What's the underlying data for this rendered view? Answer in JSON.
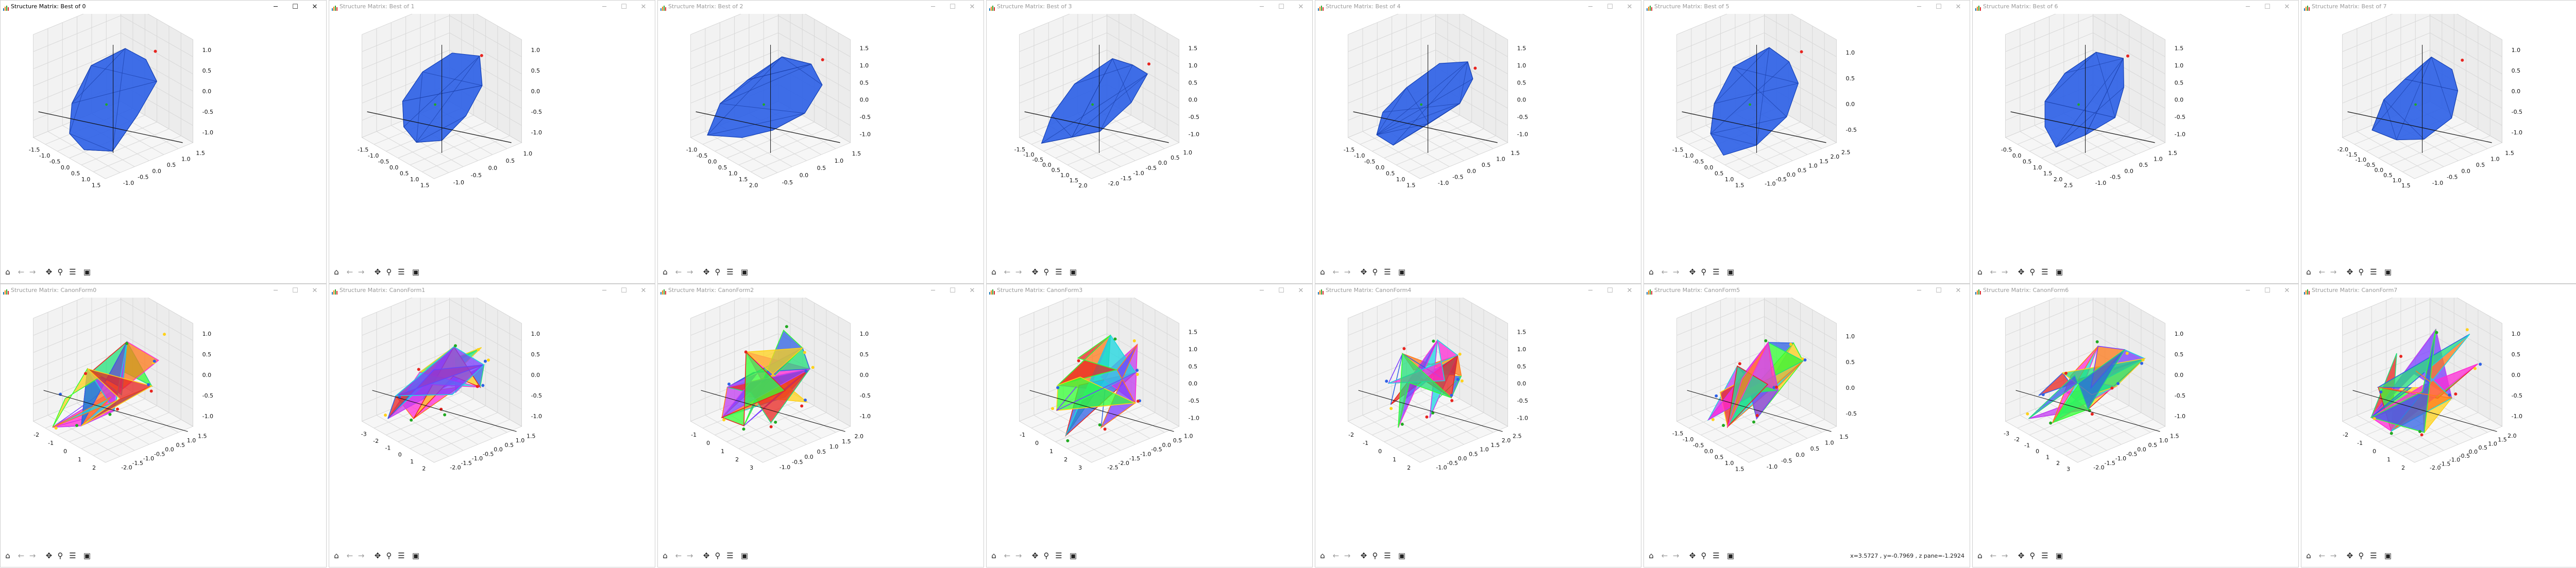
{
  "windows": [
    {
      "title": "Structure Matrix: Best of 0",
      "active": true,
      "xticks": [
        "-1.5",
        "-1.0",
        "-0.5",
        "0.0",
        "0.5",
        "1.0",
        "1.5"
      ],
      "yticks": [
        "-1.0",
        "-0.5",
        "0.0",
        "0.5",
        "1.0",
        "1.5"
      ],
      "zticks": [
        "1.0",
        "0.5",
        "0.0",
        "-0.5",
        "-1.0"
      ],
      "mode": "blue",
      "variant": 0
    },
    {
      "title": "Structure Matrix: Best of 1",
      "active": false,
      "xticks": [
        "-1.5",
        "-1.0",
        "-0.5",
        "0.0",
        "0.5",
        "1.0",
        "1.5"
      ],
      "yticks": [
        "-1.0",
        "-0.5",
        "0.0",
        "0.5",
        "1.0"
      ],
      "zticks": [
        "1.0",
        "0.5",
        "0.0",
        "-0.5",
        "-1.0"
      ],
      "mode": "blue",
      "variant": 1
    },
    {
      "title": "Structure Matrix: Best of 2",
      "active": false,
      "xticks": [
        "-1.0",
        "-0.5",
        "0.0",
        "0.5",
        "1.0",
        "1.5",
        "2.0"
      ],
      "yticks": [
        "-0.5",
        "0.0",
        "0.5",
        "1.0",
        "1.5"
      ],
      "zticks": [
        "1.5",
        "1.0",
        "0.5",
        "0.0",
        "-0.5",
        "-1.0"
      ],
      "mode": "blue",
      "variant": 2
    },
    {
      "title": "Structure Matrix: Best of 3",
      "active": false,
      "xticks": [
        "-1.5",
        "-1.0",
        "-0.5",
        "0.0",
        "0.5",
        "1.0",
        "1.5",
        "2.0"
      ],
      "yticks": [
        "-2.0",
        "-1.5",
        "-1.0",
        "-0.5",
        "0.0",
        "0.5",
        "1.0"
      ],
      "zticks": [
        "1.5",
        "1.0",
        "0.5",
        "0.0",
        "-0.5",
        "-1.0"
      ],
      "mode": "blue",
      "variant": 3
    },
    {
      "title": "Structure Matrix: Best of 4",
      "active": false,
      "xticks": [
        "-1.5",
        "-1.0",
        "-0.5",
        "0.0",
        "0.5",
        "1.0",
        "1.5"
      ],
      "yticks": [
        "-1.0",
        "-0.5",
        "0.0",
        "0.5",
        "1.0",
        "1.5"
      ],
      "zticks": [
        "1.5",
        "1.0",
        "0.5",
        "0.0",
        "-0.5",
        "-1.0"
      ],
      "mode": "blue",
      "variant": 4
    },
    {
      "title": "Structure Matrix: Best of 5",
      "active": false,
      "xticks": [
        "-1.5",
        "-1.0",
        "-0.5",
        "0.0",
        "0.5",
        "1.0",
        "1.5"
      ],
      "yticks": [
        "-1.0",
        "-0.5",
        "0.0",
        "0.5",
        "1.0",
        "1.5",
        "2.0",
        "2.5"
      ],
      "zticks": [
        "1.0",
        "0.5",
        "0.0",
        "-0.5"
      ],
      "mode": "blue",
      "variant": 5
    },
    {
      "title": "Structure Matrix: Best of 6",
      "active": false,
      "xticks": [
        "-0.5",
        "0.0",
        "0.5",
        "1.0",
        "1.5",
        "2.0",
        "2.5"
      ],
      "yticks": [
        "-1.0",
        "-0.5",
        "0.0",
        "0.5",
        "1.0",
        "1.5"
      ],
      "zticks": [
        "1.5",
        "1.0",
        "0.5",
        "0.0",
        "-0.5",
        "-1.0"
      ],
      "mode": "blue",
      "variant": 6
    },
    {
      "title": "Structure Matrix: Best of 7",
      "active": false,
      "xticks": [
        "-2.0",
        "-1.5",
        "-1.0",
        "-0.5",
        "0.0",
        "0.5",
        "1.0",
        "1.5"
      ],
      "yticks": [
        "-1.0",
        "-0.5",
        "0.0",
        "0.5",
        "1.0",
        "1.5"
      ],
      "zticks": [
        "1.0",
        "0.5",
        "0.0",
        "-0.5",
        "-1.0"
      ],
      "mode": "blue",
      "variant": 7
    },
    {
      "title": "Structure Matrix: CanonForm0",
      "active": false,
      "xticks": [
        "-2",
        "-1",
        "0",
        "1",
        "2"
      ],
      "yticks": [
        "-2.0",
        "-1.5",
        "-1.0",
        "-0.5",
        "0.0",
        "0.5",
        "1.0",
        "1.5"
      ],
      "zticks": [
        "1.0",
        "0.5",
        "0.0",
        "-0.5",
        "-1.0"
      ],
      "mode": "color",
      "variant": 0
    },
    {
      "title": "Structure Matrix: CanonForm1",
      "active": false,
      "xticks": [
        "-3",
        "-2",
        "-1",
        "0",
        "1",
        "2"
      ],
      "yticks": [
        "-2.0",
        "-1.5",
        "-1.0",
        "-0.5",
        "0.0",
        "0.5",
        "1.0",
        "1.5"
      ],
      "zticks": [
        "1.0",
        "0.5",
        "0.0",
        "-0.5",
        "-1.0"
      ],
      "mode": "color",
      "variant": 1
    },
    {
      "title": "Structure Matrix: CanonForm2",
      "active": false,
      "xticks": [
        "-1",
        "0",
        "1",
        "2",
        "3"
      ],
      "yticks": [
        "-1.0",
        "-0.5",
        "0.0",
        "0.5",
        "1.0",
        "1.5",
        "2.0"
      ],
      "zticks": [
        "1.0",
        "0.5",
        "0.0",
        "-0.5",
        "-1.0"
      ],
      "mode": "color",
      "variant": 2
    },
    {
      "title": "Structure Matrix: CanonForm3",
      "active": false,
      "xticks": [
        "-1",
        "0",
        "1",
        "2",
        "3"
      ],
      "yticks": [
        "-2.5",
        "-2.0",
        "-1.5",
        "-1.0",
        "-0.5",
        "0.0",
        "0.5",
        "1.0"
      ],
      "zticks": [
        "1.5",
        "1.0",
        "0.5",
        "0.0",
        "-0.5",
        "-1.0"
      ],
      "mode": "color",
      "variant": 3
    },
    {
      "title": "Structure Matrix: CanonForm4",
      "active": false,
      "xticks": [
        "-2",
        "-1",
        "0",
        "1",
        "2"
      ],
      "yticks": [
        "-1.0",
        "-0.5",
        "0.0",
        "0.5",
        "1.0",
        "1.5",
        "2.0",
        "2.5"
      ],
      "zticks": [
        "1.5",
        "1.0",
        "0.5",
        "0.0",
        "-0.5",
        "-1.0"
      ],
      "mode": "color",
      "variant": 4
    },
    {
      "title": "Structure Matrix: CanonForm5",
      "active": false,
      "xticks": [
        "-1.5",
        "-1.0",
        "-0.5",
        "0.0",
        "0.5",
        "1.0",
        "1.5"
      ],
      "yticks": [
        "-1.0",
        "-0.5",
        "0.0",
        "0.5",
        "1.0",
        "1.5"
      ],
      "zticks": [
        "1.0",
        "0.5",
        "0.0",
        "-0.5"
      ],
      "mode": "color",
      "variant": 5,
      "readout": "x=3.5727 , y=-0.7969 , z pane=-1.2924"
    },
    {
      "title": "Structure Matrix: CanonForm6",
      "active": false,
      "xticks": [
        "-3",
        "-2",
        "-1",
        "0",
        "1",
        "2",
        "3"
      ],
      "yticks": [
        "-2.0",
        "-1.5",
        "-1.0",
        "-0.5",
        "0.0",
        "0.5",
        "1.0",
        "1.5"
      ],
      "zticks": [
        "1.0",
        "0.5",
        "0.0",
        "-0.5",
        "-1.0"
      ],
      "mode": "color",
      "variant": 6
    },
    {
      "title": "Structure Matrix: CanonForm7",
      "active": false,
      "xticks": [
        "-2",
        "-1",
        "0",
        "1",
        "2"
      ],
      "yticks": [
        "-2.0",
        "-1.5",
        "-1.0",
        "-0.5",
        "0.0",
        "0.5",
        "1.0",
        "1.5",
        "2.0"
      ],
      "zticks": [
        "1.0",
        "0.5",
        "0.0",
        "-0.5",
        "-1.0"
      ],
      "mode": "color",
      "variant": 7
    }
  ],
  "window_controls": {
    "minimize": "─",
    "maximize": "☐",
    "close": "✕"
  },
  "toolbar_icons": [
    {
      "name": "home-icon",
      "glyph": "⌂",
      "enabled": true
    },
    {
      "name": "back-arrow-icon",
      "glyph": "←",
      "enabled": false
    },
    {
      "name": "forward-arrow-icon",
      "glyph": "→",
      "enabled": false
    },
    {
      "name": "pan-icon",
      "glyph": "✥",
      "enabled": true
    },
    {
      "name": "zoom-icon",
      "glyph": "⚲",
      "enabled": true
    },
    {
      "name": "configure-subplots-icon",
      "glyph": "☰",
      "enabled": true
    },
    {
      "name": "save-icon",
      "glyph": "▣",
      "enabled": true
    }
  ],
  "colors": {
    "blue_face": "#2f62e6",
    "blue_edge": "#1240b8",
    "grid": "#d8d8d8",
    "pane": "#f2f2f2",
    "red_point": "#e8241f",
    "green_point": "#22aa22"
  }
}
